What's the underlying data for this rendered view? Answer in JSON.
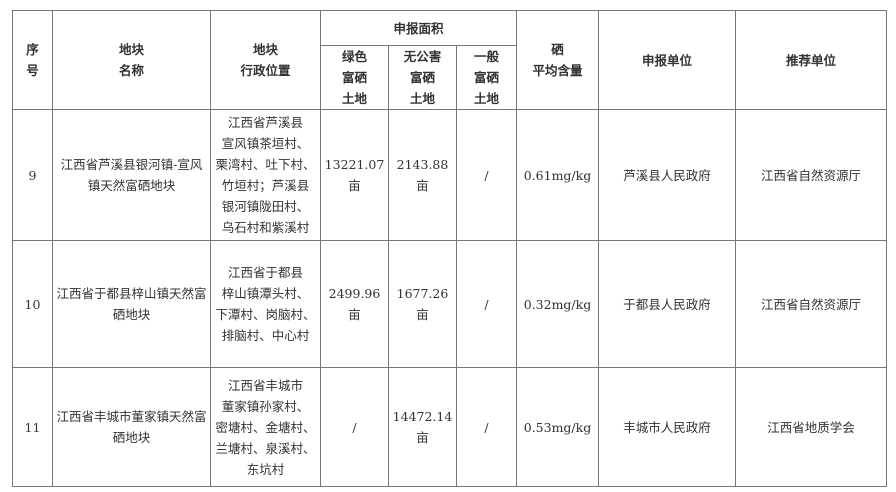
{
  "headers": {
    "index": "序\n号",
    "name": "地块\n名称",
    "location": "地块\n行政位置",
    "area_group": "申报面积",
    "green": "绿色\n富硒\n土地",
    "pollution_free": "无公害\n富硒\n土地",
    "general": "一般\n富硒\n土地",
    "selenium": "硒\n平均含量",
    "applicant": "申报单位",
    "recommender": "推荐单位"
  },
  "rows": [
    {
      "index": "9",
      "name": "江西省芦溪县银河镇-宣风镇天然富硒地块",
      "location": "江西省芦溪县\n宣风镇茶垣村、\n栗湾村、吐下村、\n竹垣村；芦溪县\n银河镇陇田村、\n乌石村和紫溪村",
      "green": "13221.07\n亩",
      "pollution_free": "2143.88\n亩",
      "general": "/",
      "selenium": "0.61mg/kg",
      "applicant": "芦溪县人民政府",
      "recommender": "江西省自然资源厅"
    },
    {
      "index": "10",
      "name": "江西省于都县梓山镇天然富硒地块",
      "location": "江西省于都县\n梓山镇潭头村、\n下潭村、岗脑村、\n排脑村、中心村",
      "green": "2499.96\n亩",
      "pollution_free": "1677.26\n亩",
      "general": "/",
      "selenium": "0.32mg/kg",
      "applicant": "于都县人民政府",
      "recommender": "江西省自然资源厅"
    },
    {
      "index": "11",
      "name": "江西省丰城市董家镇天然富硒地块",
      "location": "江西省丰城市\n董家镇孙家村、\n密塘村、金塘村、\n兰塘村、泉溪村、\n东坑村",
      "green": "/",
      "pollution_free": "14472.14\n亩",
      "general": "/",
      "selenium": "0.53mg/kg",
      "applicant": "丰城市人民政府",
      "recommender": "江西省地质学会"
    }
  ]
}
